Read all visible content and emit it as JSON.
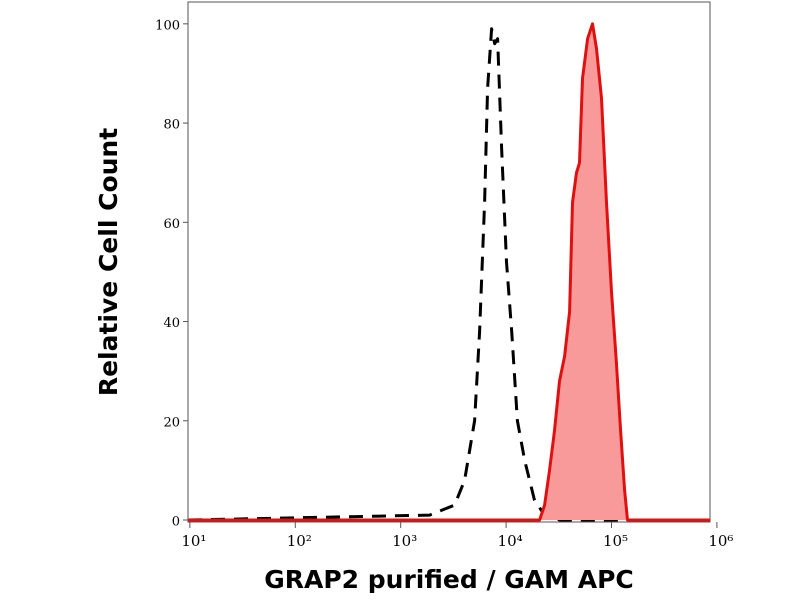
{
  "chart_data": {
    "type": "histogram_overlay",
    "xlabel": "GRAP2 purified  / GAM APC",
    "ylabel": "Relative Cell Count",
    "xscale": "log",
    "xlim": [
      9.6,
      860000
    ],
    "xticks": [
      {
        "value": 10,
        "label": "10¹"
      },
      {
        "value": 100,
        "label": "10²"
      },
      {
        "value": 1000,
        "label": "10³"
      },
      {
        "value": 10000,
        "label": "10⁴"
      },
      {
        "value": 100000,
        "label": "10⁵"
      },
      {
        "value": 1000000,
        "label": "10⁶"
      }
    ],
    "ylim": [
      -0.4,
      104.4
    ],
    "yticks": [
      0,
      20,
      40,
      60,
      80,
      100
    ],
    "series": [
      {
        "color": "#000000",
        "style": "dashed",
        "fill": false,
        "x": [
          9.6,
          1880,
          3250,
          4040,
          5030,
          5610,
          6250,
          6680,
          7290,
          7790,
          8300,
          9060,
          10100,
          11300,
          12800,
          15000,
          18600,
          23200,
          32100,
          860000
        ],
        "values": [
          0,
          1,
          3,
          8,
          20,
          38,
          64,
          87,
          99,
          96,
          97,
          75,
          52,
          38,
          20,
          12,
          4,
          1,
          0,
          0
        ]
      },
      {
        "color": "#e01010",
        "style": "solid",
        "fill": true,
        "fill_color": "#f99a9a",
        "x": [
          9.6,
          20800,
          23200,
          25800,
          28800,
          32100,
          35900,
          40000,
          42700,
          46600,
          49700,
          53100,
          59300,
          66100,
          72100,
          80400,
          89700,
          100000,
          111000,
          122000,
          133000,
          142000,
          860000
        ],
        "values": [
          0,
          0,
          3,
          10,
          18,
          28,
          33,
          42,
          64,
          70,
          72,
          89,
          97,
          100,
          95,
          85,
          64,
          46,
          32,
          18,
          6,
          0,
          0
        ]
      }
    ]
  }
}
